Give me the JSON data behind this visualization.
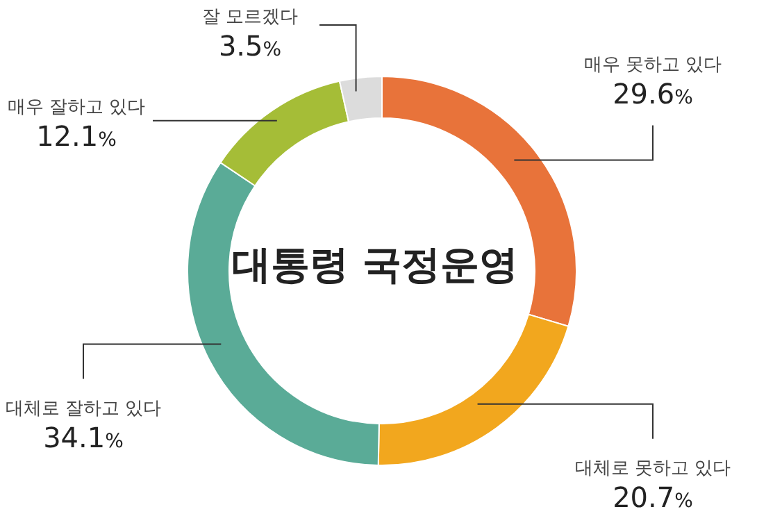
{
  "chart_data": {
    "type": "donut",
    "title": "대통령 국정운영",
    "categories": [
      "매우 못하고 있다",
      "대체로 못하고 있다",
      "대체로 잘하고 있다",
      "매우 잘하고 있다",
      "잘 모르겠다"
    ],
    "values": [
      29.6,
      20.7,
      34.1,
      12.1,
      3.5
    ],
    "value_labels": [
      "29.6%",
      "20.7%",
      "34.1%",
      "12.1%",
      "3.5%"
    ],
    "colors": [
      "#e8733a",
      "#f2a71e",
      "#5aab97",
      "#a5bd37",
      "#dcdcdc"
    ],
    "legend": false
  }
}
